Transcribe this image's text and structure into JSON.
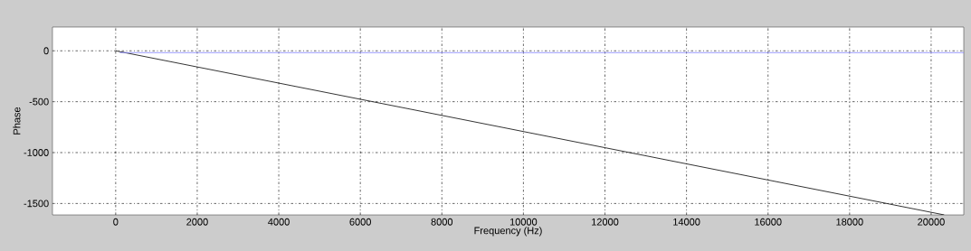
{
  "chart_data": {
    "type": "line",
    "xlabel": "Frequency (Hz)",
    "ylabel": "Phase",
    "xlim": [
      -1550,
      20800
    ],
    "ylim": [
      -1612,
      233
    ],
    "xticks": [
      0,
      2000,
      4000,
      6000,
      8000,
      10000,
      12000,
      14000,
      16000,
      18000,
      20000
    ],
    "yticks": [
      -1500,
      -1000,
      -500,
      0
    ],
    "grid": true,
    "line_style": "solid",
    "marker": "none",
    "series": [
      {
        "color": "#000000",
        "x": [
          0,
          20320
        ],
        "values": [
          0,
          -1612
        ]
      },
      {
        "color": "#7f7fff",
        "x": [
          100,
          20800
        ],
        "values": [
          -18,
          -18
        ]
      }
    ]
  }
}
